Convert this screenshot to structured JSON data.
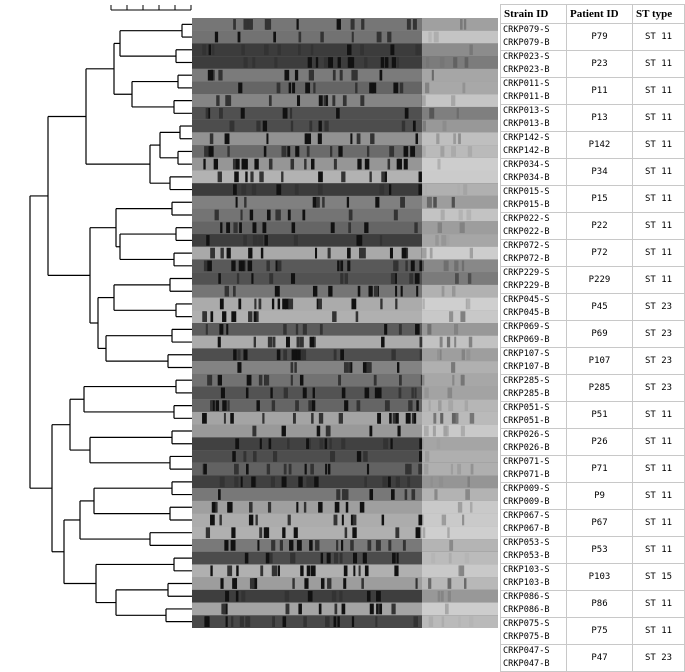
{
  "table": {
    "headers": {
      "strain": "Strain ID",
      "patient": "Patient ID",
      "st": "ST type"
    },
    "rows": [
      {
        "strains": [
          "CRKP079-S",
          "CRKP079-B"
        ],
        "patient": "P79",
        "st": "ST 11"
      },
      {
        "strains": [
          "CRKP023-S",
          "CRKP023-B"
        ],
        "patient": "P23",
        "st": "ST 11"
      },
      {
        "strains": [
          "CRKP011-S",
          "CRKP011-B"
        ],
        "patient": "P11",
        "st": "ST 11"
      },
      {
        "strains": [
          "CRKP013-S",
          "CRKP013-B"
        ],
        "patient": "P13",
        "st": "ST 11"
      },
      {
        "strains": [
          "CRKP142-S",
          "CRKP142-B"
        ],
        "patient": "P142",
        "st": "ST 11"
      },
      {
        "strains": [
          "CRKP034-S",
          "CRKP034-B"
        ],
        "patient": "P34",
        "st": "ST 11"
      },
      {
        "strains": [
          "CRKP015-S",
          "CRKP015-B"
        ],
        "patient": "P15",
        "st": "ST 11"
      },
      {
        "strains": [
          "CRKP022-S",
          "CRKP022-B"
        ],
        "patient": "P22",
        "st": "ST 11"
      },
      {
        "strains": [
          "CRKP072-S",
          "CRKP072-B"
        ],
        "patient": "P72",
        "st": "ST 11"
      },
      {
        "strains": [
          "CRKP229-S",
          "CRKP229-B"
        ],
        "patient": "P229",
        "st": "ST 11"
      },
      {
        "strains": [
          "CRKP045-S",
          "CRKP045-B"
        ],
        "patient": "P45",
        "st": "ST 23"
      },
      {
        "strains": [
          "CRKP069-S",
          "CRKP069-B"
        ],
        "patient": "P69",
        "st": "ST 23"
      },
      {
        "strains": [
          "CRKP107-S",
          "CRKP107-B"
        ],
        "patient": "P107",
        "st": "ST 23"
      },
      {
        "strains": [
          "CRKP285-S",
          "CRKP285-B"
        ],
        "patient": "P285",
        "st": "ST 23"
      },
      {
        "strains": [
          "CRKP051-S",
          "CRKP051-B"
        ],
        "patient": "P51",
        "st": "ST 11"
      },
      {
        "strains": [
          "CRKP026-S",
          "CRKP026-B"
        ],
        "patient": "P26",
        "st": "ST 11"
      },
      {
        "strains": [
          "CRKP071-S",
          "CRKP071-B"
        ],
        "patient": "P71",
        "st": "ST 11"
      },
      {
        "strains": [
          "CRKP009-S",
          "CRKP009-B"
        ],
        "patient": "P9",
        "st": "ST 11"
      },
      {
        "strains": [
          "CRKP067-S",
          "CRKP067-B"
        ],
        "patient": "P67",
        "st": "ST 11"
      },
      {
        "strains": [
          "CRKP053-S",
          "CRKP053-B"
        ],
        "patient": "P53",
        "st": "ST 11"
      },
      {
        "strains": [
          "CRKP103-S",
          "CRKP103-B"
        ],
        "patient": "P103",
        "st": "ST 15"
      },
      {
        "strains": [
          "CRKP086-S",
          "CRKP086-B"
        ],
        "patient": "P86",
        "st": "ST 11"
      },
      {
        "strains": [
          "CRKP075-S",
          "CRKP075-B"
        ],
        "patient": "P75",
        "st": "ST 11"
      },
      {
        "strains": [
          "CRKP047-S",
          "CRKP047-B"
        ],
        "patient": "P47",
        "st": "ST 23"
      }
    ]
  },
  "colors": {
    "line": "#000000",
    "gel_dark": "#1a1a1a",
    "gel_light": "#d8d8d8",
    "grid": "#c8c8c8"
  }
}
